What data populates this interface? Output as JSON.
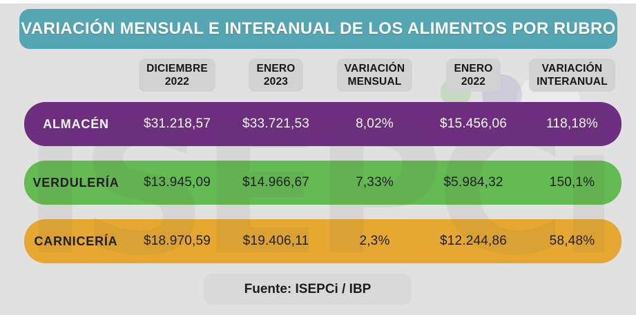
{
  "title": "VARIACIÓN MENSUAL E INTERANUAL DE LOS ALIMENTOS POR RUBRO",
  "watermark": "ISEPCi",
  "footer": {
    "label": "Fuente: ISEPCi / IBP"
  },
  "columns": [
    {
      "line1": "DICIEMBRE",
      "line2": "2022"
    },
    {
      "line1": "ENERO",
      "line2": "2023"
    },
    {
      "line1": "VARIACIÓN",
      "line2": "MENSUAL"
    },
    {
      "line1": "ENERO",
      "line2": "2022"
    },
    {
      "line1": "VARIACIÓN",
      "line2": "INTERANUAL"
    }
  ],
  "rows": [
    {
      "label": "ALMACÉN",
      "values": [
        "$31.218,57",
        "$33.721,53",
        "8,02%",
        "$15.456,06",
        "118,18%"
      ],
      "color": "#6d2e7f",
      "text_color": "#ffffff"
    },
    {
      "label": "VERDULERÍA",
      "values": [
        "$13.945,09",
        "$14.966,67",
        "7,33%",
        "$5.984,32",
        "150,1%"
      ],
      "color": "#64ba53",
      "text_color": "#1d1d1d"
    },
    {
      "label": "CARNICERÍA",
      "values": [
        "$18.970,59",
        "$19.406,11",
        "2,3%",
        "$12.244,86",
        "58,48%"
      ],
      "color": "#e7a831",
      "text_color": "#1d1d1d"
    }
  ],
  "colors": {
    "background": "#e1e1e1",
    "title_bg": "#55a6b3",
    "title_text": "#ffffff",
    "badge_bg": "#d2d2d2",
    "badge_text": "#151515",
    "footer_bg": "#d9d9d9",
    "row_purple": "#6d2e7f",
    "row_green": "#64ba53",
    "row_orange": "#e7a831"
  },
  "chart_data": {
    "type": "table",
    "title": "VARIACIÓN MENSUAL E INTERANUAL DE LOS ALIMENTOS POR RUBRO",
    "columns": [
      "RUBRO",
      "DICIEMBRE 2022",
      "ENERO 2023",
      "VARIACIÓN MENSUAL",
      "ENERO 2022",
      "VARIACIÓN INTERANUAL"
    ],
    "rows": [
      [
        "ALMACÉN",
        "$31.218,57",
        "$33.721,53",
        "8,02%",
        "$15.456,06",
        "118,18%"
      ],
      [
        "VERDULERÍA",
        "$13.945,09",
        "$14.966,67",
        "7,33%",
        "$5.984,32",
        "150,1%"
      ],
      [
        "CARNICERÍA",
        "$18.970,59",
        "$19.406,11",
        "2,3%",
        "$12.244,86",
        "58,48%"
      ]
    ],
    "source": "Fuente: ISEPCi / IBP"
  }
}
